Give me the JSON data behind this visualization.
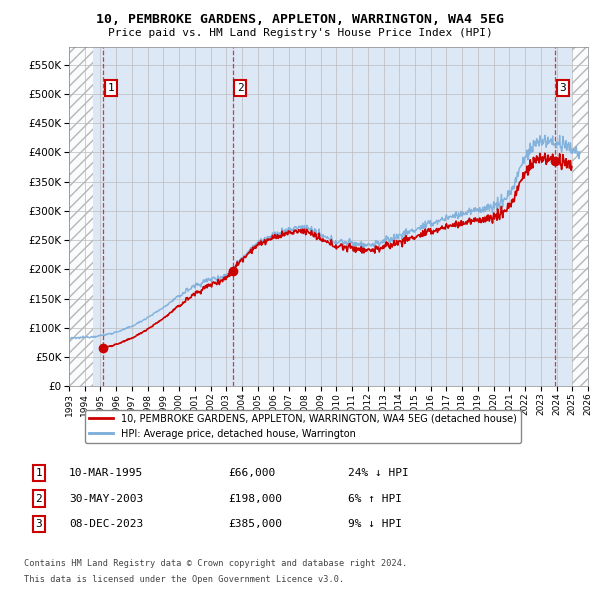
{
  "title_line1": "10, PEMBROKE GARDENS, APPLETON, WARRINGTON, WA4 5EG",
  "title_line2": "Price paid vs. HM Land Registry's House Price Index (HPI)",
  "sales": [
    {
      "date_str": "10-MAR-1995",
      "date_x": 1995.19,
      "price": 66000,
      "label": "1",
      "hpi_rel": "24% ↓ HPI"
    },
    {
      "date_str": "30-MAY-2003",
      "date_x": 2003.41,
      "price": 198000,
      "label": "2",
      "hpi_rel": "6% ↑ HPI"
    },
    {
      "date_str": "08-DEC-2023",
      "date_x": 2023.93,
      "price": 385000,
      "label": "3",
      "hpi_rel": "9% ↓ HPI"
    }
  ],
  "hpi_color": "#7aacda",
  "sale_color": "#cc0000",
  "legend_label_sale": "10, PEMBROKE GARDENS, APPLETON, WARRINGTON, WA4 5EG (detached house)",
  "legend_label_hpi": "HPI: Average price, detached house, Warrington",
  "footer_line1": "Contains HM Land Registry data © Crown copyright and database right 2024.",
  "footer_line2": "This data is licensed under the Open Government Licence v3.0.",
  "xlim_left": 1993.0,
  "xlim_right": 2026.0,
  "ylim_bottom": 0,
  "ylim_top": 580000,
  "yticks": [
    0,
    50000,
    100000,
    150000,
    200000,
    250000,
    300000,
    350000,
    400000,
    450000,
    500000,
    550000
  ],
  "xticks": [
    1993,
    1994,
    1995,
    1996,
    1997,
    1998,
    1999,
    2000,
    2001,
    2002,
    2003,
    2004,
    2005,
    2006,
    2007,
    2008,
    2009,
    2010,
    2011,
    2012,
    2013,
    2014,
    2015,
    2016,
    2017,
    2018,
    2019,
    2020,
    2021,
    2022,
    2023,
    2024,
    2025,
    2026
  ],
  "hatch_left_end": 1994.5,
  "hatch_right_start": 2025.0,
  "background_fill_color": "#dce8f5",
  "grid_color": "#bbbbbb",
  "table_rows": [
    {
      "num": "1",
      "date": "10-MAR-1995",
      "price": "£66,000",
      "hpi": "24% ↓ HPI"
    },
    {
      "num": "2",
      "date": "30-MAY-2003",
      "price": "£198,000",
      "hpi": "6% ↑ HPI"
    },
    {
      "num": "3",
      "date": "08-DEC-2023",
      "price": "£385,000",
      "hpi": "9% ↓ HPI"
    }
  ]
}
